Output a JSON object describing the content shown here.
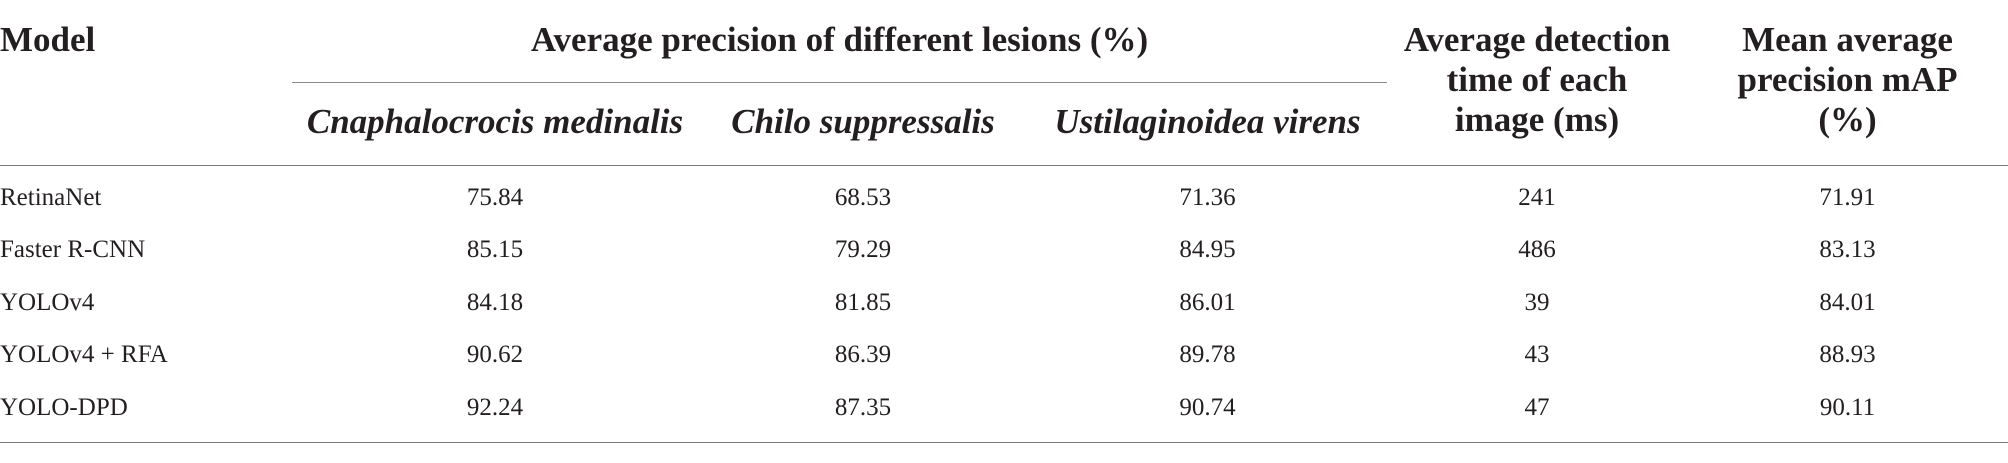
{
  "table": {
    "headers": {
      "model": "Model",
      "group": "Average precision of different lesions (%)",
      "lesions": [
        "Cnaphalocrocis medinalis",
        "Chilo suppressalis",
        "Ustilaginoidea virens"
      ],
      "time_lines": [
        "Average detection",
        "time of each",
        "image (ms)"
      ],
      "map_lines": [
        "Mean average",
        "precision mAP",
        "(%)"
      ]
    },
    "rows": [
      {
        "model": "RetinaNet",
        "cn": "75.84",
        "chilo": "68.53",
        "ust": "71.36",
        "time": "241",
        "map": "71.91"
      },
      {
        "model": "Faster R-CNN",
        "cn": "85.15",
        "chilo": "79.29",
        "ust": "84.95",
        "time": "486",
        "map": "83.13"
      },
      {
        "model": "YOLOv4",
        "cn": "84.18",
        "chilo": "81.85",
        "ust": "86.01",
        "time": "39",
        "map": "84.01"
      },
      {
        "model": "YOLOv4 + RFA",
        "cn": "90.62",
        "chilo": "86.39",
        "ust": "89.78",
        "time": "43",
        "map": "88.93"
      },
      {
        "model": "YOLO-DPD",
        "cn": "92.24",
        "chilo": "87.35",
        "ust": "90.74",
        "time": "47",
        "map": "90.11"
      }
    ]
  }
}
